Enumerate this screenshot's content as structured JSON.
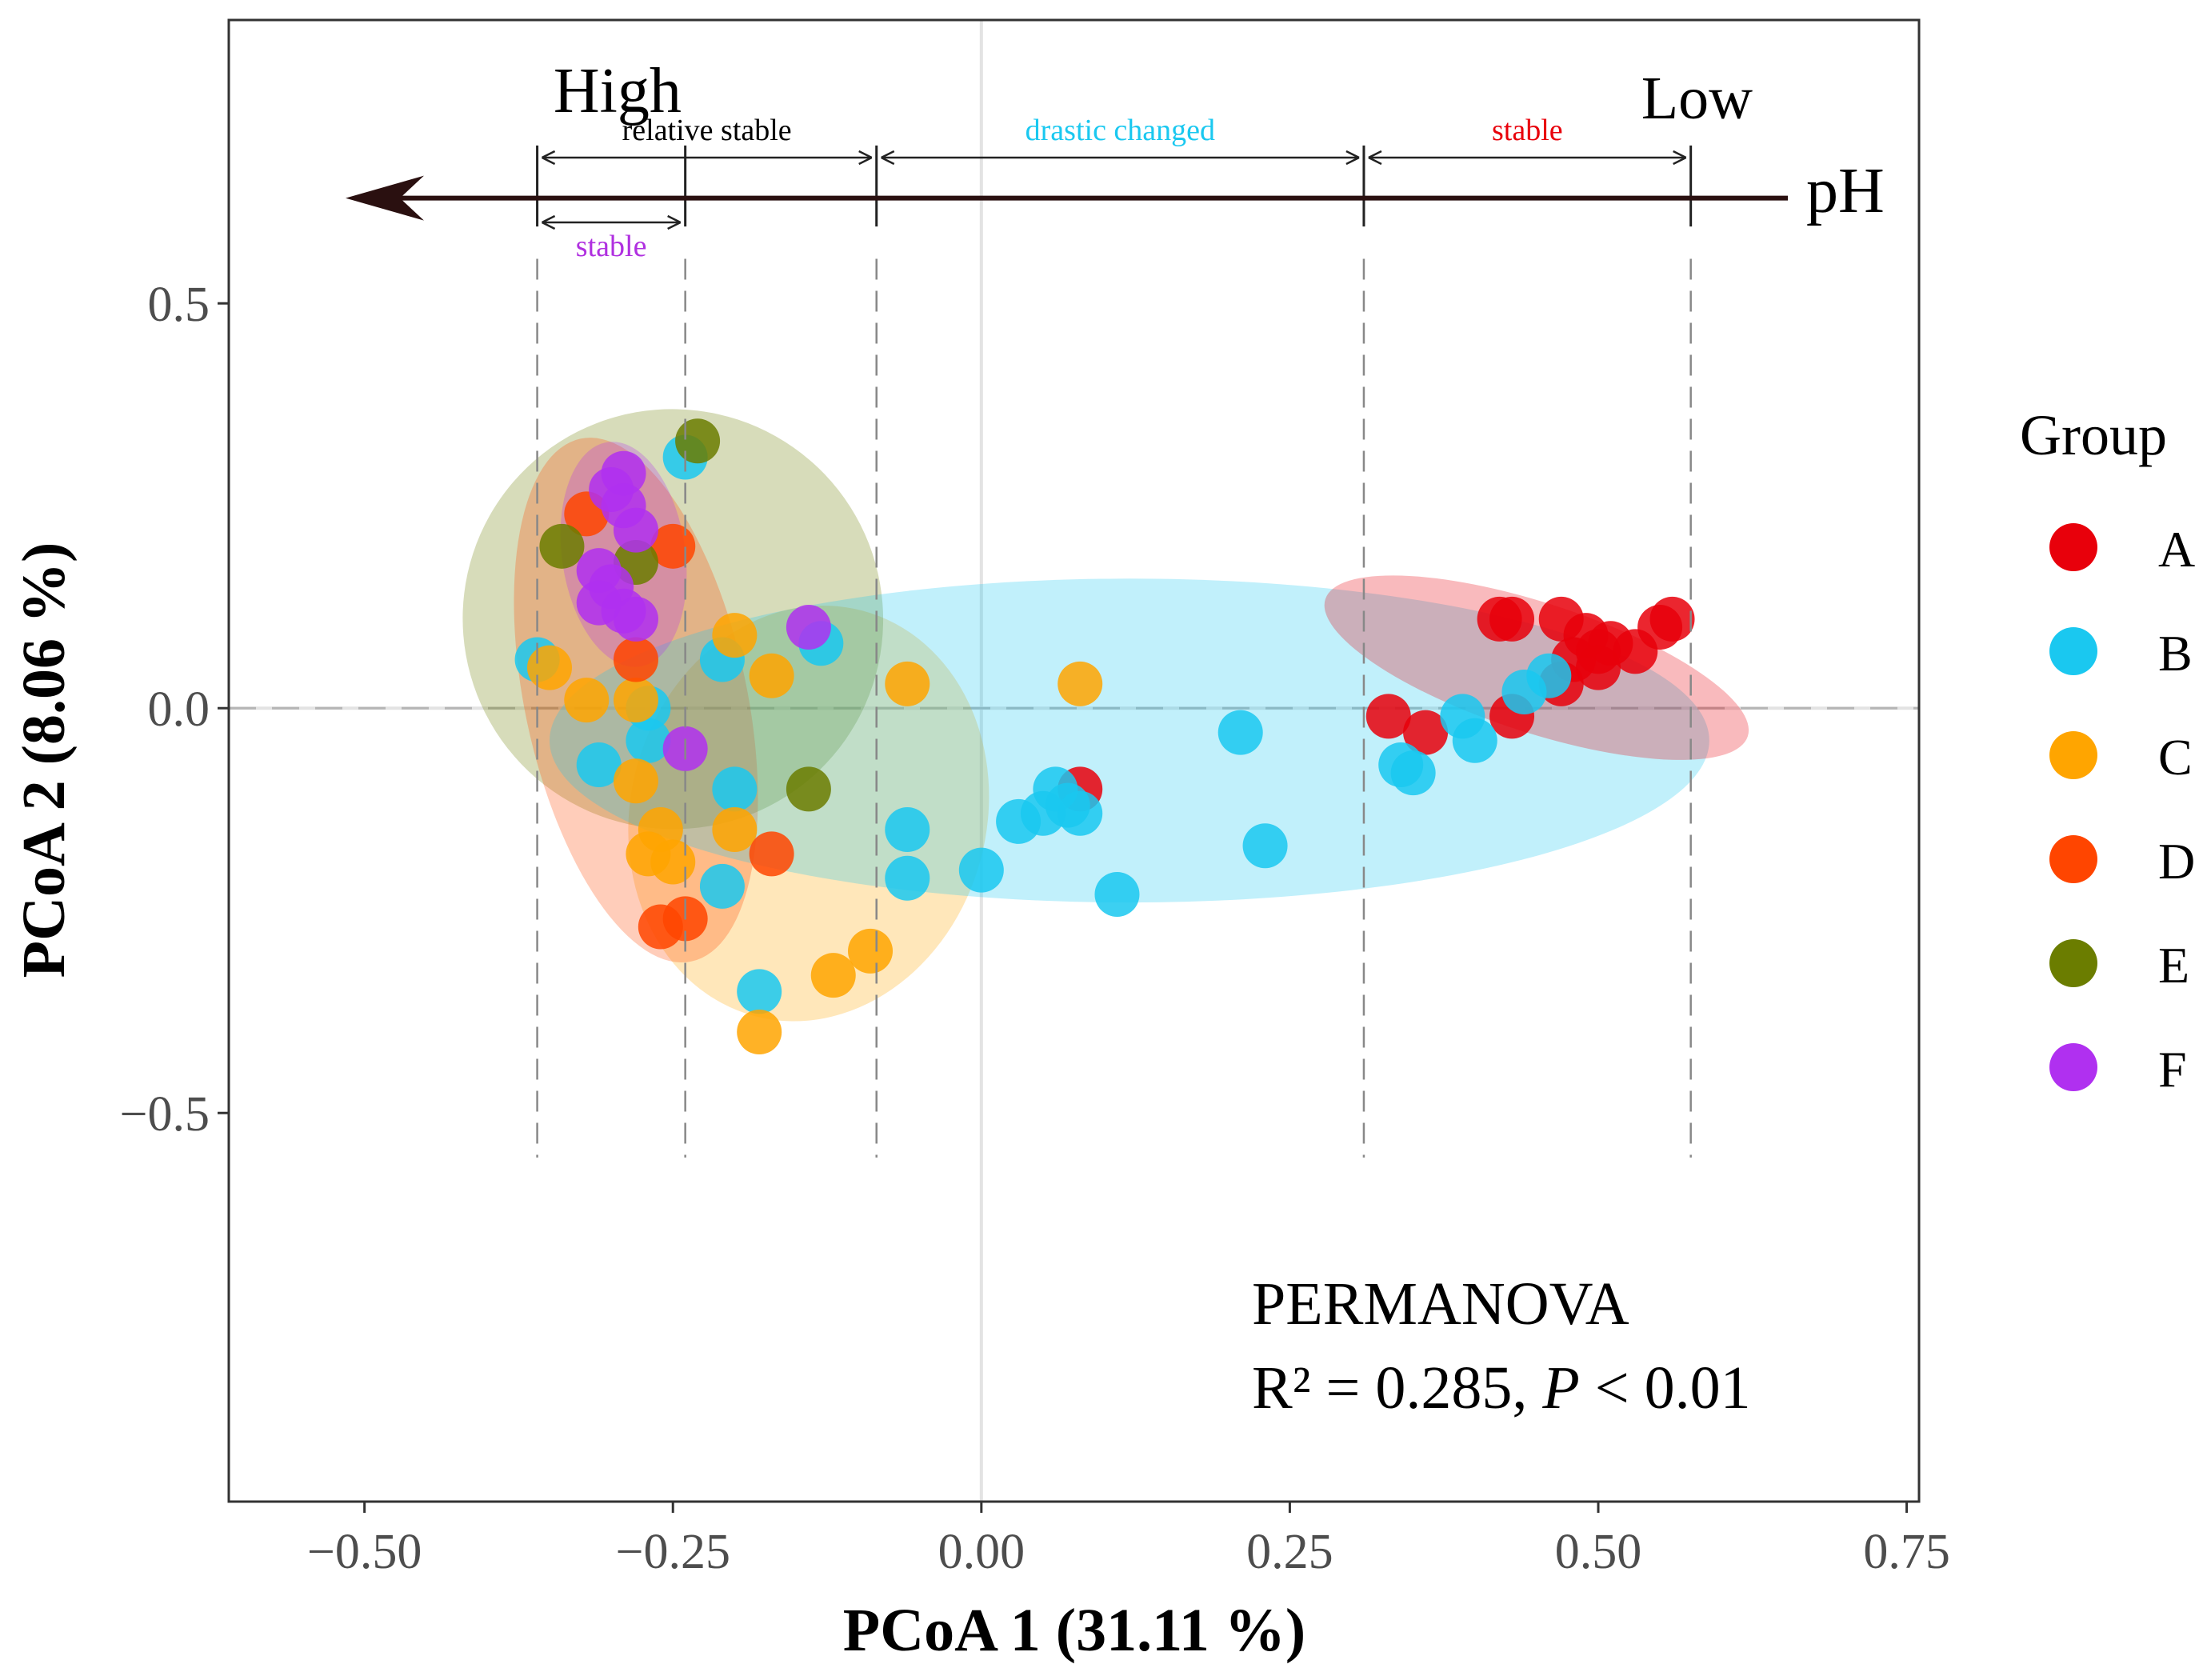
{
  "chart_data": {
    "type": "scatter",
    "xlabel": "PCoA 1 (31.11 %)",
    "ylabel": "PCoA 2 (8.06 %)",
    "xlim": [
      -0.61,
      0.76
    ],
    "ylim": [
      -0.98,
      0.85
    ],
    "x_ticks": [
      -0.5,
      -0.25,
      0.0,
      0.25,
      0.5,
      0.75
    ],
    "x_tick_labels": [
      "−0.50",
      "−0.25",
      "0.00",
      "0.25",
      "0.50",
      "0.75"
    ],
    "y_ticks": [
      0.5,
      0.0,
      -0.5
    ],
    "y_tick_labels": [
      "0.5",
      "0.0",
      "−0.5"
    ],
    "legend_title": "Group",
    "legend_position": "right",
    "series": [
      {
        "name": "A",
        "color": "#E8000B",
        "points": [
          [
            0.47,
            0.11
          ],
          [
            0.49,
            0.09
          ],
          [
            0.5,
            0.07
          ],
          [
            0.51,
            0.08
          ],
          [
            0.53,
            0.07
          ],
          [
            0.55,
            0.1
          ],
          [
            0.56,
            0.11
          ],
          [
            0.48,
            0.06
          ],
          [
            0.5,
            0.05
          ],
          [
            0.42,
            0.11
          ],
          [
            0.43,
            0.11
          ],
          [
            0.47,
            0.03
          ],
          [
            0.33,
            -0.01
          ],
          [
            0.36,
            -0.03
          ],
          [
            0.43,
            -0.01
          ],
          [
            0.08,
            -0.1
          ]
        ]
      },
      {
        "name": "B",
        "color": "#1AC8F0",
        "points": [
          [
            -0.36,
            0.06
          ],
          [
            -0.31,
            -0.07
          ],
          [
            -0.27,
            0.0
          ],
          [
            -0.27,
            -0.04
          ],
          [
            -0.24,
            0.31
          ],
          [
            -0.21,
            0.06
          ],
          [
            -0.2,
            -0.1
          ],
          [
            -0.21,
            -0.22
          ],
          [
            -0.18,
            -0.35
          ],
          [
            -0.13,
            0.08
          ],
          [
            -0.06,
            -0.15
          ],
          [
            -0.06,
            -0.21
          ],
          [
            0.0,
            -0.2
          ],
          [
            0.03,
            -0.14
          ],
          [
            0.05,
            -0.13
          ],
          [
            0.06,
            -0.1
          ],
          [
            0.07,
            -0.12
          ],
          [
            0.08,
            -0.13
          ],
          [
            0.11,
            -0.23
          ],
          [
            0.21,
            -0.03
          ],
          [
            0.23,
            -0.17
          ],
          [
            0.34,
            -0.07
          ],
          [
            0.35,
            -0.08
          ],
          [
            0.39,
            -0.01
          ],
          [
            0.4,
            -0.04
          ],
          [
            0.44,
            0.02
          ],
          [
            0.46,
            0.04
          ]
        ]
      },
      {
        "name": "C",
        "color": "#FFA500",
        "points": [
          [
            -0.35,
            0.05
          ],
          [
            -0.32,
            0.01
          ],
          [
            -0.28,
            -0.09
          ],
          [
            -0.28,
            0.01
          ],
          [
            -0.26,
            -0.15
          ],
          [
            -0.27,
            -0.18
          ],
          [
            -0.25,
            -0.19
          ],
          [
            -0.2,
            -0.15
          ],
          [
            -0.2,
            0.09
          ],
          [
            -0.17,
            0.04
          ],
          [
            -0.18,
            -0.4
          ],
          [
            -0.12,
            -0.33
          ],
          [
            -0.09,
            -0.3
          ],
          [
            -0.06,
            0.03
          ],
          [
            0.08,
            0.03
          ]
        ]
      },
      {
        "name": "D",
        "color": "#FF4500",
        "points": [
          [
            -0.32,
            0.24
          ],
          [
            -0.25,
            0.2
          ],
          [
            -0.28,
            0.06
          ],
          [
            -0.17,
            -0.18
          ],
          [
            -0.26,
            -0.27
          ],
          [
            -0.24,
            -0.26
          ]
        ]
      },
      {
        "name": "E",
        "color": "#6B7D00",
        "points": [
          [
            -0.34,
            0.2
          ],
          [
            -0.28,
            0.18
          ],
          [
            -0.23,
            0.33
          ],
          [
            -0.14,
            -0.1
          ]
        ]
      },
      {
        "name": "F",
        "color": "#B030F0",
        "points": [
          [
            -0.29,
            0.29
          ],
          [
            -0.3,
            0.27
          ],
          [
            -0.29,
            0.25
          ],
          [
            -0.28,
            0.22
          ],
          [
            -0.31,
            0.17
          ],
          [
            -0.3,
            0.15
          ],
          [
            -0.31,
            0.13
          ],
          [
            -0.29,
            0.12
          ],
          [
            -0.28,
            0.11
          ],
          [
            -0.14,
            0.1
          ],
          [
            -0.24,
            -0.05
          ]
        ]
      }
    ],
    "ellipses": [
      {
        "group": "C",
        "color": "#FFA500",
        "cx": -0.14,
        "cy": -0.13,
        "rx": 0.17,
        "ry": 0.22,
        "angle": -75
      },
      {
        "group": "E",
        "color": "#6B7D00",
        "cx": -0.25,
        "cy": 0.11,
        "rx": 0.17,
        "ry": 0.26,
        "angle": -55
      },
      {
        "group": "D",
        "color": "#FF4500",
        "cx": -0.28,
        "cy": 0.01,
        "rx": 0.09,
        "ry": 0.33,
        "angle": -12
      },
      {
        "group": "B",
        "color": "#1AC8F0",
        "cx": 0.12,
        "cy": -0.04,
        "rx": 0.47,
        "ry": 0.2,
        "angle": 0
      },
      {
        "group": "A",
        "color": "#E8000B",
        "cx": 0.45,
        "cy": 0.05,
        "rx": 0.18,
        "ry": 0.08,
        "angle": 18
      },
      {
        "group": "F",
        "color": "#B030F0",
        "cx": -0.29,
        "cy": 0.19,
        "rx": 0.05,
        "ry": 0.14,
        "angle": -8
      }
    ],
    "ph_annotation": {
      "high_label": "High",
      "low_label": "Low",
      "ph_label": "pH",
      "arrow_y": 0.63,
      "dashed_lines_x": [
        -0.36,
        -0.24,
        -0.085,
        0.31,
        0.575
      ],
      "segments": [
        {
          "label": "relative stable",
          "color": "#000000",
          "from": -0.36,
          "to": -0.085,
          "y": 0.68
        },
        {
          "label": "stable",
          "color": "#B030E0",
          "from": -0.36,
          "to": -0.24,
          "y": 0.6
        },
        {
          "label": "drastic changed",
          "color": "#1AC8F0",
          "from": -0.085,
          "to": 0.31,
          "y": 0.68
        },
        {
          "label": "stable",
          "color": "#E8000B",
          "from": 0.31,
          "to": 0.575,
          "y": 0.68
        }
      ]
    },
    "stats_title": "PERMANOVA",
    "stats_r2_prefix": "R² = 0.285, ",
    "stats_p_symbol": "P",
    "stats_p_value": " < 0.01"
  }
}
